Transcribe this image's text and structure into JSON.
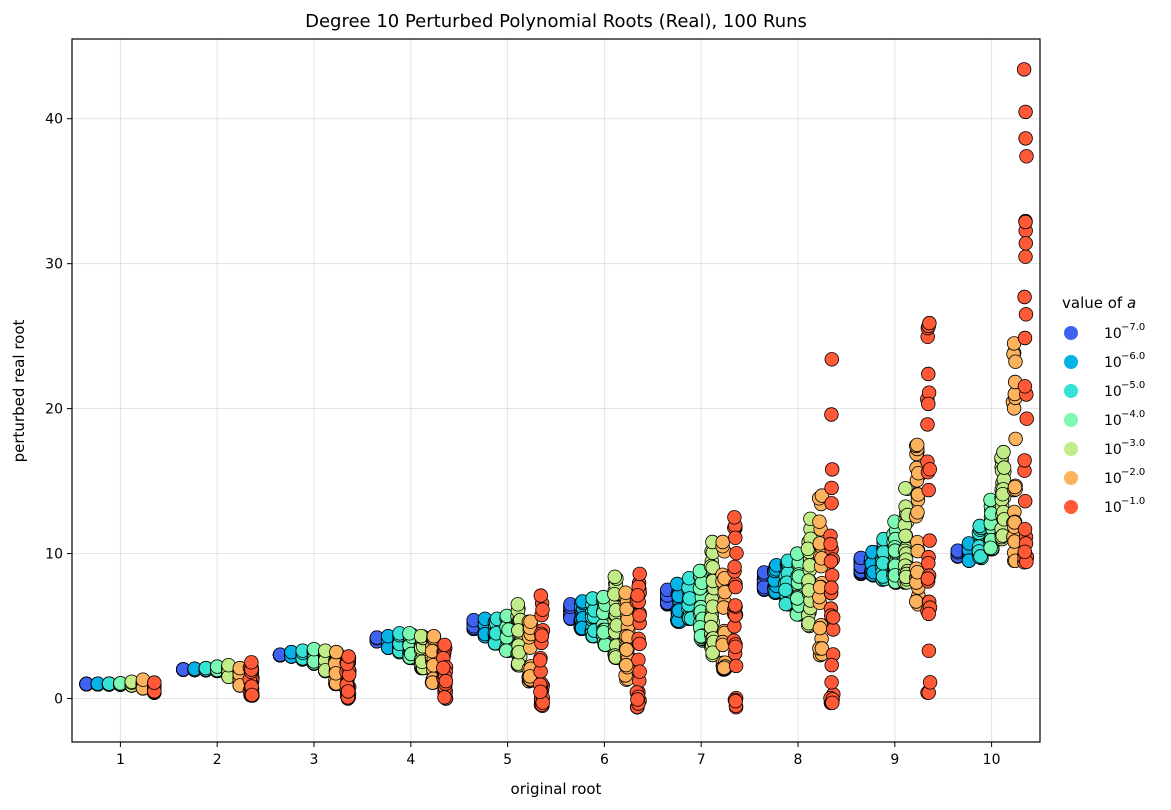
{
  "chart_data": {
    "type": "scatter",
    "title": "Degree 10 Perturbed Polynomial Roots (Real), 100 Runs",
    "xlabel": "original root",
    "ylabel": "perturbed real root",
    "xlim": [
      0.5,
      10.5
    ],
    "ylim": [
      -3,
      45.5
    ],
    "x_ticks": [
      1,
      2,
      3,
      4,
      5,
      6,
      7,
      8,
      9,
      10
    ],
    "y_ticks": [
      0,
      10,
      20,
      30,
      40
    ],
    "grid": true,
    "legend_title_text": "value of ",
    "legend_title_var": "a",
    "legend_position": "right",
    "marker_edge_color": "#000000",
    "series": [
      {
        "name_base": "10",
        "name_exp": "−7.0",
        "color": "#4062f0",
        "x_offset": -0.35,
        "ranges": [
          [
            0.99,
            1.01
          ],
          [
            1.99,
            2.01
          ],
          [
            2.99,
            3.02
          ],
          [
            3.95,
            4.2
          ],
          [
            4.8,
            5.4
          ],
          [
            5.5,
            6.5
          ],
          [
            6.5,
            7.5
          ],
          [
            7.5,
            8.7
          ],
          [
            8.6,
            9.7
          ],
          [
            9.8,
            10.2
          ]
        ]
      },
      {
        "name_base": "10",
        "name_exp": "−6.0",
        "color": "#05b3e6",
        "x_offset": -0.233,
        "ranges": [
          [
            0.98,
            1.02
          ],
          [
            1.97,
            2.05
          ],
          [
            2.9,
            3.2
          ],
          [
            3.5,
            4.3
          ],
          [
            4.3,
            5.5
          ],
          [
            4.8,
            6.7
          ],
          [
            5.3,
            7.9
          ],
          [
            7.3,
            9.2
          ],
          [
            8.5,
            10.1
          ],
          [
            9.5,
            10.7
          ]
        ]
      },
      {
        "name_base": "10",
        "name_exp": "−5.0",
        "color": "#36e3d4",
        "x_offset": -0.117,
        "ranges": [
          [
            0.97,
            1.03
          ],
          [
            1.95,
            2.1
          ],
          [
            2.7,
            3.3
          ],
          [
            3.2,
            4.5
          ],
          [
            3.8,
            5.5
          ],
          [
            4.3,
            6.9
          ],
          [
            5.5,
            8.3
          ],
          [
            6.5,
            9.5
          ],
          [
            8.2,
            11.0
          ],
          [
            9.7,
            11.9
          ]
        ]
      },
      {
        "name_base": "10",
        "name_exp": "−4.0",
        "color": "#7cf9b3",
        "x_offset": 0.0,
        "ranges": [
          [
            0.96,
            1.05
          ],
          [
            1.9,
            2.2
          ],
          [
            2.4,
            3.4
          ],
          [
            2.8,
            4.5
          ],
          [
            3.3,
            5.7
          ],
          [
            3.7,
            7.0
          ],
          [
            4.0,
            8.8
          ],
          [
            5.8,
            10.0
          ],
          [
            8.0,
            12.2
          ],
          [
            10.3,
            13.7
          ]
        ]
      },
      {
        "name_base": "10",
        "name_exp": "−3.0",
        "color": "#c2ec88",
        "x_offset": 0.117,
        "ranges": [
          [
            0.9,
            1.15
          ],
          [
            1.5,
            2.3
          ],
          [
            1.9,
            3.3
          ],
          [
            2.1,
            4.3
          ],
          [
            2.3,
            6.5
          ],
          [
            2.8,
            8.4
          ],
          [
            3.0,
            10.8
          ],
          [
            5.0,
            12.4
          ],
          [
            8.0,
            14.5
          ],
          [
            11.0,
            17.0
          ]
        ]
      },
      {
        "name_base": "10",
        "name_exp": "−2.0",
        "color": "#fdb25e",
        "x_offset": 0.233,
        "ranges": [
          [
            0.7,
            1.3
          ],
          [
            0.9,
            2.1
          ],
          [
            1.0,
            3.2
          ],
          [
            1.1,
            4.3
          ],
          [
            1.2,
            5.3
          ],
          [
            1.3,
            7.3
          ],
          [
            2.0,
            10.8
          ],
          [
            3.0,
            14.0
          ],
          [
            6.5,
            17.5
          ],
          [
            9.5,
            24.5
          ]
        ]
      },
      {
        "name_base": "10",
        "name_exp": "−1.0",
        "color": "#ff5937",
        "x_offset": 0.35,
        "ranges": [
          [
            0.4,
            1.1
          ],
          [
            0.2,
            2.5
          ],
          [
            0.0,
            2.9
          ],
          [
            0.0,
            3.7
          ],
          [
            -0.5,
            7.1
          ],
          [
            -0.6,
            8.6
          ],
          [
            -0.6,
            12.5
          ],
          [
            -0.3,
            23.4
          ],
          [
            0.4,
            25.9
          ],
          [
            9.4,
            43.4
          ]
        ]
      }
    ]
  }
}
